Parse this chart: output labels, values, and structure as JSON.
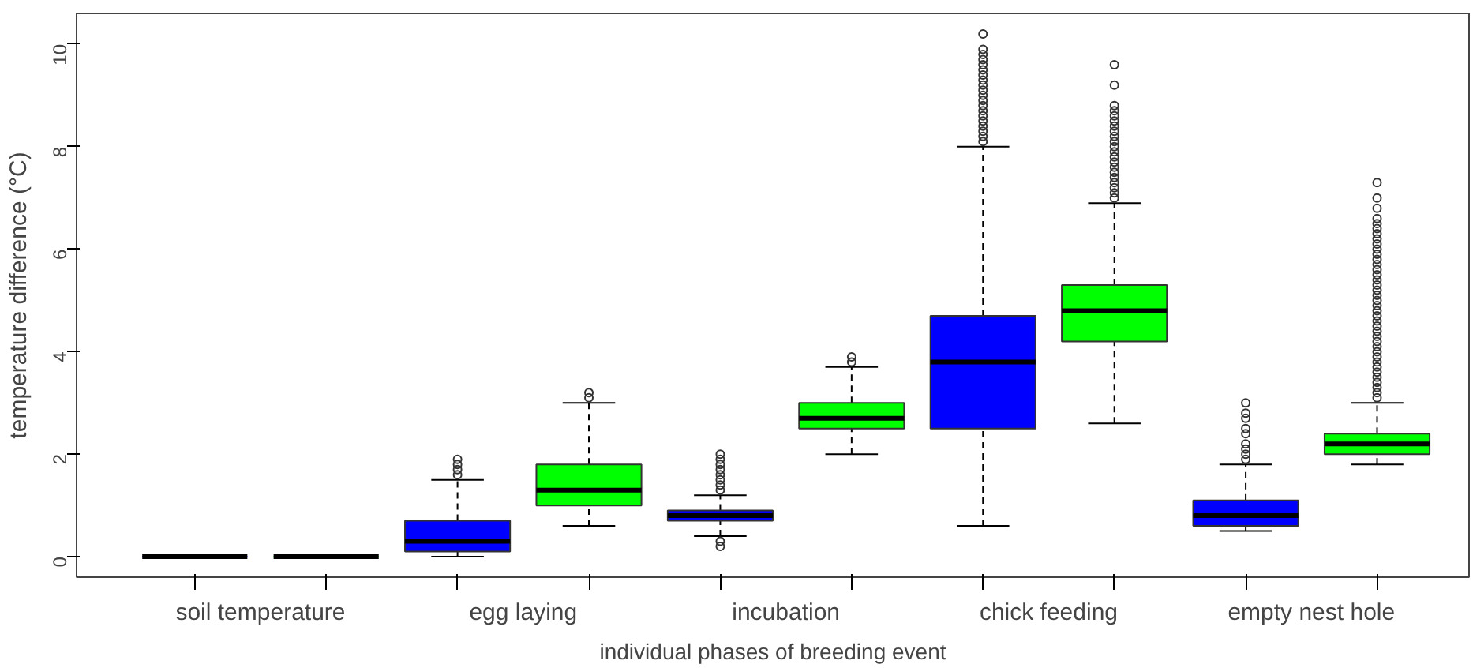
{
  "chart_data": {
    "type": "box",
    "xlabel": "individual phases of breeding event",
    "ylabel": "temperature difference (°C)",
    "categories": [
      "soil temperature",
      "egg laying",
      "incubation",
      "chick feeding",
      "empty nest hole"
    ],
    "ylim": [
      -0.4,
      10.6
    ],
    "yticks": [
      0,
      2,
      4,
      6,
      8,
      10
    ],
    "grid": false,
    "series": [
      {
        "color": "#0000ff",
        "boxes": [
          {
            "low": 0,
            "q1": 0,
            "median": 0,
            "q3": 0,
            "high": 0
          },
          {
            "low": 0,
            "q1": 0.1,
            "median": 0.3,
            "q3": 0.7,
            "high": 1.5,
            "outliers": [
              1.6,
              1.7,
              1.8,
              1.9
            ]
          },
          {
            "low": 0.4,
            "q1": 0.7,
            "median": 0.8,
            "q3": 0.9,
            "high": 1.2,
            "outliers": [
              0.2,
              0.3,
              1.3,
              1.4,
              1.5,
              1.6,
              1.7,
              1.8,
              1.9,
              2.0
            ]
          },
          {
            "low": 0.6,
            "q1": 2.5,
            "median": 3.8,
            "q3": 4.7,
            "high": 8.0,
            "outliers": [
              8.1,
              8.2,
              8.3,
              8.4,
              8.5,
              8.6,
              8.7,
              8.8,
              8.9,
              9.0,
              9.1,
              9.2,
              9.3,
              9.4,
              9.5,
              9.6,
              9.7,
              9.8,
              9.9,
              10.2
            ]
          },
          {
            "low": 0.5,
            "q1": 0.6,
            "median": 0.8,
            "q3": 1.1,
            "high": 1.8,
            "outliers": [
              1.9,
              2.0,
              2.1,
              2.2,
              2.4,
              2.5,
              2.7,
              2.8,
              3.0
            ]
          }
        ]
      },
      {
        "color": "#00ff00",
        "boxes": [
          {
            "low": 0,
            "q1": 0,
            "median": 0,
            "q3": 0,
            "high": 0
          },
          {
            "low": 0.6,
            "q1": 1.0,
            "median": 1.3,
            "q3": 1.8,
            "high": 3.0,
            "outliers": [
              3.1,
              3.2
            ]
          },
          {
            "low": 2.0,
            "q1": 2.5,
            "median": 2.7,
            "q3": 3.0,
            "high": 3.7,
            "outliers": [
              3.8,
              3.9
            ]
          },
          {
            "low": 2.6,
            "q1": 4.2,
            "median": 4.8,
            "q3": 5.3,
            "high": 6.9,
            "outliers": [
              7.0,
              7.1,
              7.2,
              7.3,
              7.4,
              7.5,
              7.6,
              7.7,
              7.8,
              7.9,
              8.0,
              8.1,
              8.2,
              8.3,
              8.4,
              8.5,
              8.6,
              8.7,
              8.8,
              9.2,
              9.6
            ]
          },
          {
            "low": 1.8,
            "q1": 2.0,
            "median": 2.2,
            "q3": 2.4,
            "high": 3.0,
            "outliers": [
              3.1,
              3.2,
              3.3,
              3.4,
              3.5,
              3.6,
              3.7,
              3.8,
              3.9,
              4.0,
              4.1,
              4.2,
              4.3,
              4.4,
              4.5,
              4.6,
              4.7,
              4.8,
              4.9,
              5.0,
              5.1,
              5.2,
              5.3,
              5.4,
              5.5,
              5.6,
              5.7,
              5.8,
              5.9,
              6.0,
              6.1,
              6.2,
              6.3,
              6.4,
              6.5,
              6.6,
              6.8,
              7.0,
              7.3
            ]
          }
        ]
      }
    ]
  }
}
